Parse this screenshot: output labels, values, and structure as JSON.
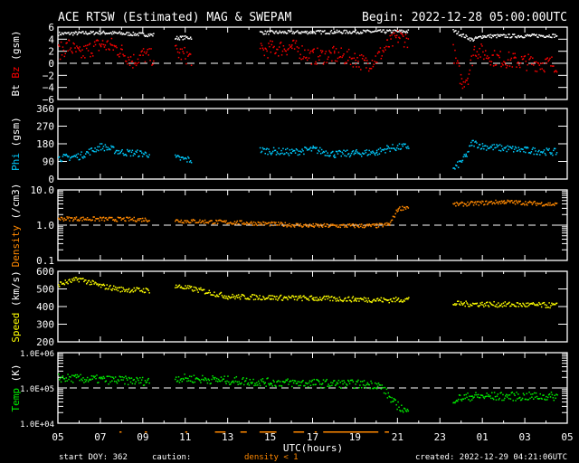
{
  "chart_data": {
    "type": "scatter",
    "title": "ACE RTSW (Estimated) MAG & SWEPAM",
    "begin": "Begin: 2022-12-28 05:00:00UTC",
    "xlabel": "UTC(hours)",
    "x_unit": "hours since begin",
    "xlim": [
      0,
      24
    ],
    "x_ticks": [
      "05",
      "07",
      "09",
      "11",
      "13",
      "15",
      "17",
      "19",
      "21",
      "23",
      "01",
      "03",
      "05"
    ],
    "footer": {
      "start_doy": "start DOY: 362",
      "caution": "caution:",
      "caution_note": "density < 1",
      "created": "created: 2022-12-29 04:21:06UTC"
    },
    "caution_ranges": [
      [
        2.9,
        3.0
      ],
      [
        4.1,
        4.2
      ],
      [
        6.0,
        6.1
      ],
      [
        7.4,
        7.9
      ],
      [
        8.6,
        8.9
      ],
      [
        9.5,
        10.3
      ],
      [
        11.1,
        11.6
      ],
      [
        12.1,
        12.2
      ],
      [
        12.5,
        15.1
      ],
      [
        15.4,
        15.6
      ]
    ],
    "panels": [
      {
        "id": "mag",
        "ylabel_parts": [
          {
            "text": "Bt ",
            "color": "#ffffff"
          },
          {
            "text": "Bz",
            "color": "#ff0000"
          },
          {
            "text": " (gsm)",
            "color": "#ffffff"
          }
        ],
        "scale": "linear",
        "ylim": [
          -6,
          6
        ],
        "ticks": [
          6,
          4,
          2,
          0,
          -2,
          -4,
          -6
        ],
        "tick_labels": [
          "6",
          "4",
          "2",
          "0",
          "−2",
          "−4",
          "−6"
        ],
        "dashed": 0,
        "series": [
          {
            "name": "Bt",
            "color": "#ffffff",
            "spread": 0.3,
            "segments": [
              [
                [
                  0,
                  5.0
                ],
                [
                  2,
                  5.2
                ],
                [
                  4.5,
                  4.8
                ]
              ],
              [
                [
                  5.5,
                  4.3
                ],
                [
                  6.3,
                  4.4
                ]
              ],
              [
                [
                  9.5,
                  5.2
                ],
                [
                  13,
                  5.3
                ],
                [
                  16.5,
                  5.4
                ]
              ],
              [
                [
                  18.6,
                  5.5
                ],
                [
                  19.5,
                  4.0
                ],
                [
                  20,
                  4.6
                ],
                [
                  23.5,
                  4.7
                ]
              ]
            ]
          },
          {
            "name": "Bz",
            "color": "#ff0000",
            "spread": 1.4,
            "segments": [
              [
                [
                  0,
                  2
                ],
                [
                  0.5,
                  3
                ],
                [
                  1,
                  1.5
                ],
                [
                  1.5,
                  2.5
                ],
                [
                  2,
                  3.2
                ],
                [
                  2.5,
                  3
                ],
                [
                  3,
                  2
                ],
                [
                  3.5,
                  0.5
                ],
                [
                  4,
                  1.5
                ],
                [
                  4.5,
                  1
                ]
              ],
              [
                [
                  5.5,
                  2
                ],
                [
                  6.3,
                  1
                ]
              ],
              [
                [
                  9.5,
                  2
                ],
                [
                  10,
                  2.5
                ],
                [
                  11,
                  2.8
                ],
                [
                  12,
                  1.2
                ],
                [
                  13,
                  1.5
                ],
                [
                  14,
                  0.8
                ],
                [
                  14.5,
                  0
                ],
                [
                  15,
                  1
                ],
                [
                  15.5,
                  3
                ],
                [
                  16,
                  4.5
                ],
                [
                  16.5,
                  4
                ]
              ],
              [
                [
                  18.6,
                  2
                ],
                [
                  19,
                  -3
                ],
                [
                  19.3,
                  -2
                ],
                [
                  19.6,
                  2.5
                ],
                [
                  20.5,
                  1
                ],
                [
                  21.5,
                  0.5
                ],
                [
                  23,
                  0
                ],
                [
                  23.5,
                  0
                ]
              ]
            ]
          }
        ]
      },
      {
        "id": "phi",
        "ylabel_parts": [
          {
            "text": "Phi",
            "color": "#00ccff"
          },
          {
            "text": " (gsm)",
            "color": "#ffffff"
          }
        ],
        "scale": "linear",
        "ylim": [
          0,
          360
        ],
        "ticks": [
          360,
          270,
          180,
          90,
          0
        ],
        "tick_labels": [
          "360",
          "270",
          "180",
          "90",
          "0"
        ],
        "series": [
          {
            "name": "Phi",
            "color": "#00ccff",
            "spread": 18,
            "segments": [
              [
                [
                  0,
                  110
                ],
                [
                  1,
                  120
                ],
                [
                  2,
                  170
                ],
                [
                  3,
                  140
                ],
                [
                  4.3,
                  130
                ]
              ],
              [
                [
                  5.5,
                  110
                ],
                [
                  6.3,
                  100
                ]
              ],
              [
                [
                  9.5,
                  150
                ],
                [
                  11,
                  140
                ],
                [
                  12,
                  155
                ],
                [
                  13,
                  130
                ],
                [
                  14,
                  135
                ],
                [
                  15,
                  140
                ],
                [
                  15.5,
                  160
                ],
                [
                  16.5,
                  170
                ]
              ],
              [
                [
                  18.6,
                  50
                ],
                [
                  19.2,
                  120
                ],
                [
                  19.5,
                  190
                ],
                [
                  20,
                  170
                ],
                [
                  22,
                  150
                ],
                [
                  23.5,
                  140
                ]
              ]
            ]
          }
        ]
      },
      {
        "id": "density",
        "ylabel_parts": [
          {
            "text": "Density",
            "color": "#ff8800"
          },
          {
            "text": " (/cm3)",
            "color": "#ffffff"
          }
        ],
        "scale": "log",
        "ylim": [
          0.1,
          10
        ],
        "ticks": [
          10,
          1,
          0.1
        ],
        "tick_labels": [
          "10.0",
          "1.0",
          "0.1"
        ],
        "dashed": 1,
        "series": [
          {
            "name": "Density",
            "color": "#ff8800",
            "spread": 0.06,
            "segments": [
              [
                [
                  0,
                  1.6
                ],
                [
                  4.3,
                  1.5
                ]
              ],
              [
                [
                  5.5,
                  1.4
                ],
                [
                  9,
                  1.2
                ],
                [
                  12,
                  1.0
                ],
                [
                  15,
                  1.0
                ],
                [
                  15.6,
                  1.1
                ],
                [
                  16,
                  3
                ],
                [
                  16.5,
                  3.5
                ]
              ],
              [
                [
                  18.6,
                  4
                ],
                [
                  21,
                  4.8
                ],
                [
                  23.5,
                  4
                ]
              ]
            ]
          }
        ]
      },
      {
        "id": "speed",
        "ylabel_parts": [
          {
            "text": "Speed",
            "color": "#ffff00"
          },
          {
            "text": " (km/s)",
            "color": "#ffffff"
          }
        ],
        "scale": "linear",
        "ylim": [
          200,
          600
        ],
        "ticks": [
          600,
          500,
          400,
          300,
          200
        ],
        "tick_labels": [
          "600",
          "500",
          "400",
          "300",
          "200"
        ],
        "series": [
          {
            "name": "Speed",
            "color": "#ffff00",
            "spread": 15,
            "segments": [
              [
                [
                  0,
                  530
                ],
                [
                  1,
                  560
                ],
                [
                  2,
                  520
                ],
                [
                  3,
                  500
                ],
                [
                  4.3,
                  495
                ]
              ],
              [
                [
                  5.5,
                  520
                ],
                [
                  6.5,
                  500
                ],
                [
                  8,
                  460
                ],
                [
                  10,
                  455
                ],
                [
                  12,
                  450
                ],
                [
                  14,
                  445
                ],
                [
                  15.5,
                  440
                ],
                [
                  16.5,
                  445
                ]
              ],
              [
                [
                  18.6,
                  420
                ],
                [
                  23.5,
                  410
                ]
              ]
            ]
          }
        ]
      },
      {
        "id": "temp",
        "ylabel_parts": [
          {
            "text": "Temp",
            "color": "#00ee00"
          },
          {
            "text": " (K)",
            "color": "#ffffff"
          }
        ],
        "scale": "log",
        "ylim": [
          10000,
          1000000
        ],
        "ticks": [
          1000000,
          100000,
          10000
        ],
        "tick_labels": [
          "1.0E+06",
          "1.0E+05",
          "1.0E+04"
        ],
        "dashed": 100000,
        "series": [
          {
            "name": "Temp",
            "color": "#00ee00",
            "spread": 0.12,
            "segments": [
              [
                [
                  0,
                  200000
                ],
                [
                  4.3,
                  160000
                ]
              ],
              [
                [
                  5.5,
                  200000
                ],
                [
                  10,
                  150000
                ],
                [
                  15,
                  130000
                ],
                [
                  15.3,
                  100000
                ],
                [
                  15.8,
                  40000
                ],
                [
                  16.5,
                  20000
                ]
              ],
              [
                [
                  18.6,
                  50000
                ],
                [
                  19.5,
                  60000
                ],
                [
                  23.5,
                  60000
                ]
              ]
            ]
          }
        ]
      }
    ]
  }
}
